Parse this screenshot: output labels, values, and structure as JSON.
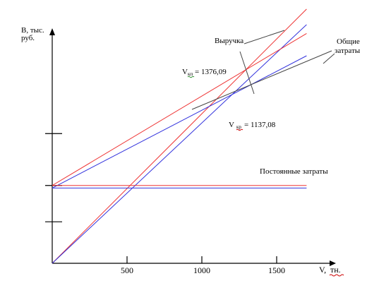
{
  "chart_data": {
    "type": "line",
    "x": [
      0,
      1700
    ],
    "xlim": [
      0,
      1700
    ],
    "ylim": [
      0,
      4.5
    ],
    "ylabel_line1": "В, тыс.",
    "ylabel_line2": "руб.",
    "xlabel_main": "V,",
    "xlabel_unit": "тн.",
    "xticks": [
      500,
      1000,
      1500
    ],
    "xtick_labels": [
      "500",
      "1000",
      "1500"
    ],
    "yticks": [
      0.8,
      1.5,
      2.5
    ],
    "series": [
      {
        "color": "#ee3333",
        "values": [
          0,
          4.9
        ]
      },
      {
        "color": "#3333dd",
        "values": [
          0,
          4.6
        ]
      },
      {
        "color": "#ee3333",
        "values": [
          1.5,
          4.43
        ]
      },
      {
        "color": "#3333dd",
        "values": [
          1.45,
          4.0
        ]
      },
      {
        "color": "#ee3333",
        "values": [
          1.5,
          1.5
        ]
      },
      {
        "color": "#3333dd",
        "values": [
          1.45,
          1.45
        ]
      }
    ],
    "annotations": {
      "revenue": "Выручка",
      "total_costs_line1": "Общие",
      "total_costs_line2": "затраты",
      "fixed_costs": "Постоянные затраты",
      "bep1_main": "V",
      "bep1_sub": "кп",
      "bep1_value": "= 1376,09",
      "bep2_main": "V",
      "bep2_sub": "кр",
      "bep2_value": "= 1137,08"
    }
  }
}
